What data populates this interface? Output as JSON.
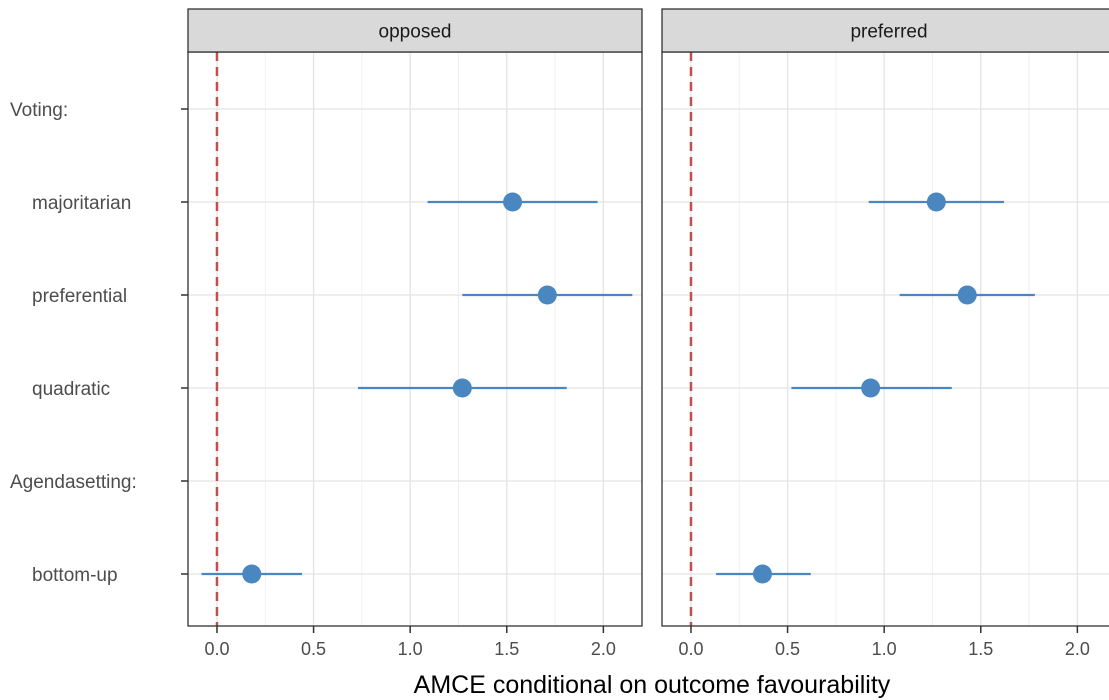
{
  "chart_data": {
    "type": "scatter",
    "subtype": "coefficient-plot-with-error-bars",
    "xlabel": "AMCE conditional on outcome favourability",
    "xlim": [
      -0.15,
      2.2
    ],
    "x_ticks": [
      "0.0",
      "0.5",
      "1.0",
      "1.5",
      "2.0"
    ],
    "reference_line": {
      "x": 0,
      "style": "dashed",
      "color": "#c0504d"
    },
    "categories": [
      "Voting:",
      "majoritarian",
      "preferential",
      "quadratic",
      "Agendasetting:",
      "bottom-up"
    ],
    "point_color": "#4a86c0",
    "grid": true,
    "panels": [
      {
        "strip": "opposed",
        "points": [
          {
            "category": "majoritarian",
            "estimate": 1.53,
            "lower": 1.09,
            "upper": 1.97
          },
          {
            "category": "preferential",
            "estimate": 1.71,
            "lower": 1.27,
            "upper": 2.15
          },
          {
            "category": "quadratic",
            "estimate": 1.27,
            "lower": 0.73,
            "upper": 1.81
          },
          {
            "category": "bottom-up",
            "estimate": 0.18,
            "lower": -0.08,
            "upper": 0.44
          }
        ]
      },
      {
        "strip": "preferred",
        "points": [
          {
            "category": "majoritarian",
            "estimate": 1.27,
            "lower": 0.92,
            "upper": 1.62
          },
          {
            "category": "preferential",
            "estimate": 1.43,
            "lower": 1.08,
            "upper": 1.78
          },
          {
            "category": "quadratic",
            "estimate": 0.93,
            "lower": 0.52,
            "upper": 1.35
          },
          {
            "category": "bottom-up",
            "estimate": 0.37,
            "lower": 0.13,
            "upper": 0.62
          }
        ]
      }
    ]
  }
}
